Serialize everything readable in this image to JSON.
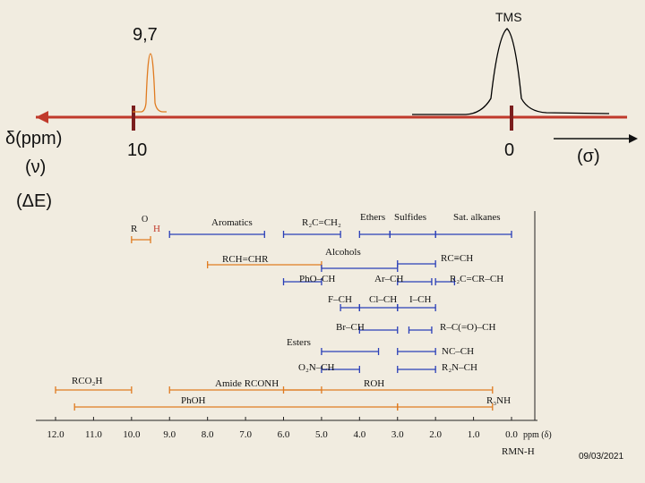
{
  "top": {
    "peak_label": "9,7",
    "tms_label": "TMS",
    "delta_axis_label": "δ(ppm)",
    "nu_label": "(ν)",
    "delta_e_label": "(ΔE)",
    "sigma_label": "(σ)",
    "tick_10": "10",
    "tick_0": "0",
    "colors": {
      "axis": "#c0392b",
      "tick": "#7b1e1e",
      "peak_orange": "#e07b20",
      "peak_black": "#000000"
    }
  },
  "chart_data": {
    "type": "range-chart",
    "title": "",
    "xlabel": "ppm (δ)",
    "x_axis_ticks": [
      "12.0",
      "11.0",
      "10.0",
      "9.0",
      "8.0",
      "7.0",
      "6.0",
      "5.0",
      "4.0",
      "3.0",
      "2.0",
      "1.0",
      "0.0"
    ],
    "xlim": [
      12.0,
      0.0
    ],
    "series_colors": {
      "blue": "#2a3fb8",
      "orange": "#e07b20"
    },
    "rows": [
      {
        "id": "aldehyde",
        "label": "R–C(=O)–H",
        "color": "orange",
        "from": 10.0,
        "to": 9.5
      },
      {
        "id": "aromatics",
        "label": "Aromatics",
        "color": "blue",
        "from": 9.0,
        "to": 6.5
      },
      {
        "id": "alkene",
        "label": "R₂C=CH₂",
        "color": "blue",
        "from": 6.0,
        "to": 4.5
      },
      {
        "id": "ethers",
        "label": "Ethers",
        "color": "blue",
        "from": 4.0,
        "to": 3.2
      },
      {
        "id": "sulfides",
        "label": "Sulfides",
        "color": "blue",
        "from": 3.2,
        "to": 2.0
      },
      {
        "id": "alkanes",
        "label": "Sat. alkanes",
        "color": "blue",
        "from": 2.0,
        "to": 0.0
      },
      {
        "id": "vinylic",
        "label": "RCH=CHR",
        "color": "orange",
        "from": 8.0,
        "to": 5.0
      },
      {
        "id": "alcohols",
        "label": "Alcohols",
        "color": "blue",
        "from": 5.0,
        "to": 3.0
      },
      {
        "id": "alkyne",
        "label": "RC≡CH",
        "color": "blue",
        "from": 3.0,
        "to": 2.0
      },
      {
        "id": "phenol_ether",
        "label": "PhO–CH",
        "color": "blue",
        "from": 6.0,
        "to": 5.0
      },
      {
        "id": "benzylic",
        "label": "Ar–CH",
        "color": "blue",
        "from": 3.0,
        "to": 2.1
      },
      {
        "id": "allylic",
        "label": "R₂C=CR–CH",
        "color": "blue",
        "from": 2.0,
        "to": 1.5
      },
      {
        "id": "fch",
        "label": "F–CH",
        "color": "blue",
        "from": 4.5,
        "to": 4.0
      },
      {
        "id": "clch",
        "label": "Cl–CH",
        "color": "blue",
        "from": 4.0,
        "to": 3.0
      },
      {
        "id": "ich",
        "label": "I–CH",
        "color": "blue",
        "from": 3.0,
        "to": 2.0
      },
      {
        "id": "brch",
        "label": "Br–CH",
        "color": "blue",
        "from": 4.0,
        "to": 3.0
      },
      {
        "id": "ketone",
        "label": "R–C(=O)–CH",
        "color": "blue",
        "from": 2.7,
        "to": 2.1
      },
      {
        "id": "esters",
        "label": "Esters",
        "color": "blue",
        "from": 5.0,
        "to": 3.5
      },
      {
        "id": "nitrile",
        "label": "NC–CH",
        "color": "blue",
        "from": 3.0,
        "to": 2.0
      },
      {
        "id": "nitro",
        "label": "O₂N–CH",
        "color": "blue",
        "from": 5.0,
        "to": 4.0
      },
      {
        "id": "amine",
        "label": "R₂N–CH",
        "color": "blue",
        "from": 3.0,
        "to": 2.0
      },
      {
        "id": "carboxylic",
        "label": "RCO₂H",
        "color": "orange",
        "from": 12.0,
        "to": 10.0
      },
      {
        "id": "amide",
        "label": "Amide RCONH",
        "color": "orange",
        "from": 9.0,
        "to": 5.0
      },
      {
        "id": "roh",
        "label": "ROH",
        "color": "orange",
        "from": 6.0,
        "to": 0.5
      },
      {
        "id": "phenol",
        "label": "PhOH",
        "color": "orange",
        "from": 11.5,
        "to": 3.0
      },
      {
        "id": "r3nh",
        "label": "R₃NH",
        "color": "orange",
        "from": 3.0,
        "to": 0.5
      }
    ]
  },
  "footer": {
    "caption": "RMN-H",
    "date": "09/03/2021"
  }
}
